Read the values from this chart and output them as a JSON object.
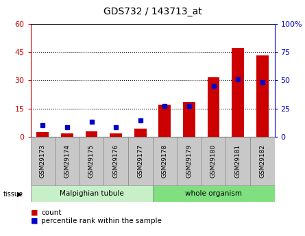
{
  "title": "GDS732 / 143713_at",
  "samples": [
    "GSM29173",
    "GSM29174",
    "GSM29175",
    "GSM29176",
    "GSM29177",
    "GSM29178",
    "GSM29179",
    "GSM29180",
    "GSM29181",
    "GSM29182"
  ],
  "count_values": [
    2.5,
    2.0,
    3.0,
    2.0,
    4.5,
    17.0,
    18.5,
    31.5,
    47.0,
    43.0
  ],
  "percentile_values": [
    10.5,
    8.5,
    13.5,
    8.5,
    14.5,
    27.0,
    27.5,
    45.0,
    51.0,
    48.5
  ],
  "count_color": "#cc0000",
  "percentile_color": "#0000cc",
  "left_ylim": [
    0,
    60
  ],
  "right_ylim": [
    0,
    100
  ],
  "left_yticks": [
    0,
    15,
    30,
    45,
    60
  ],
  "right_yticks": [
    0,
    25,
    50,
    75,
    100
  ],
  "right_yticklabels": [
    "0",
    "25",
    "50",
    "75",
    "100%"
  ],
  "tissue_groups": {
    "Malpighian tubule": [
      0,
      4
    ],
    "whole organism": [
      5,
      9
    ]
  },
  "tissue_color_mt": "#c8f0c8",
  "tissue_color_wo": "#80e080",
  "bar_width": 0.5,
  "marker_size": 5,
  "legend_count": "count",
  "legend_percentile": "percentile rank within the sample",
  "background_color": "#ffffff",
  "tick_bg_color": "#c8c8c8",
  "border_color": "#000000"
}
